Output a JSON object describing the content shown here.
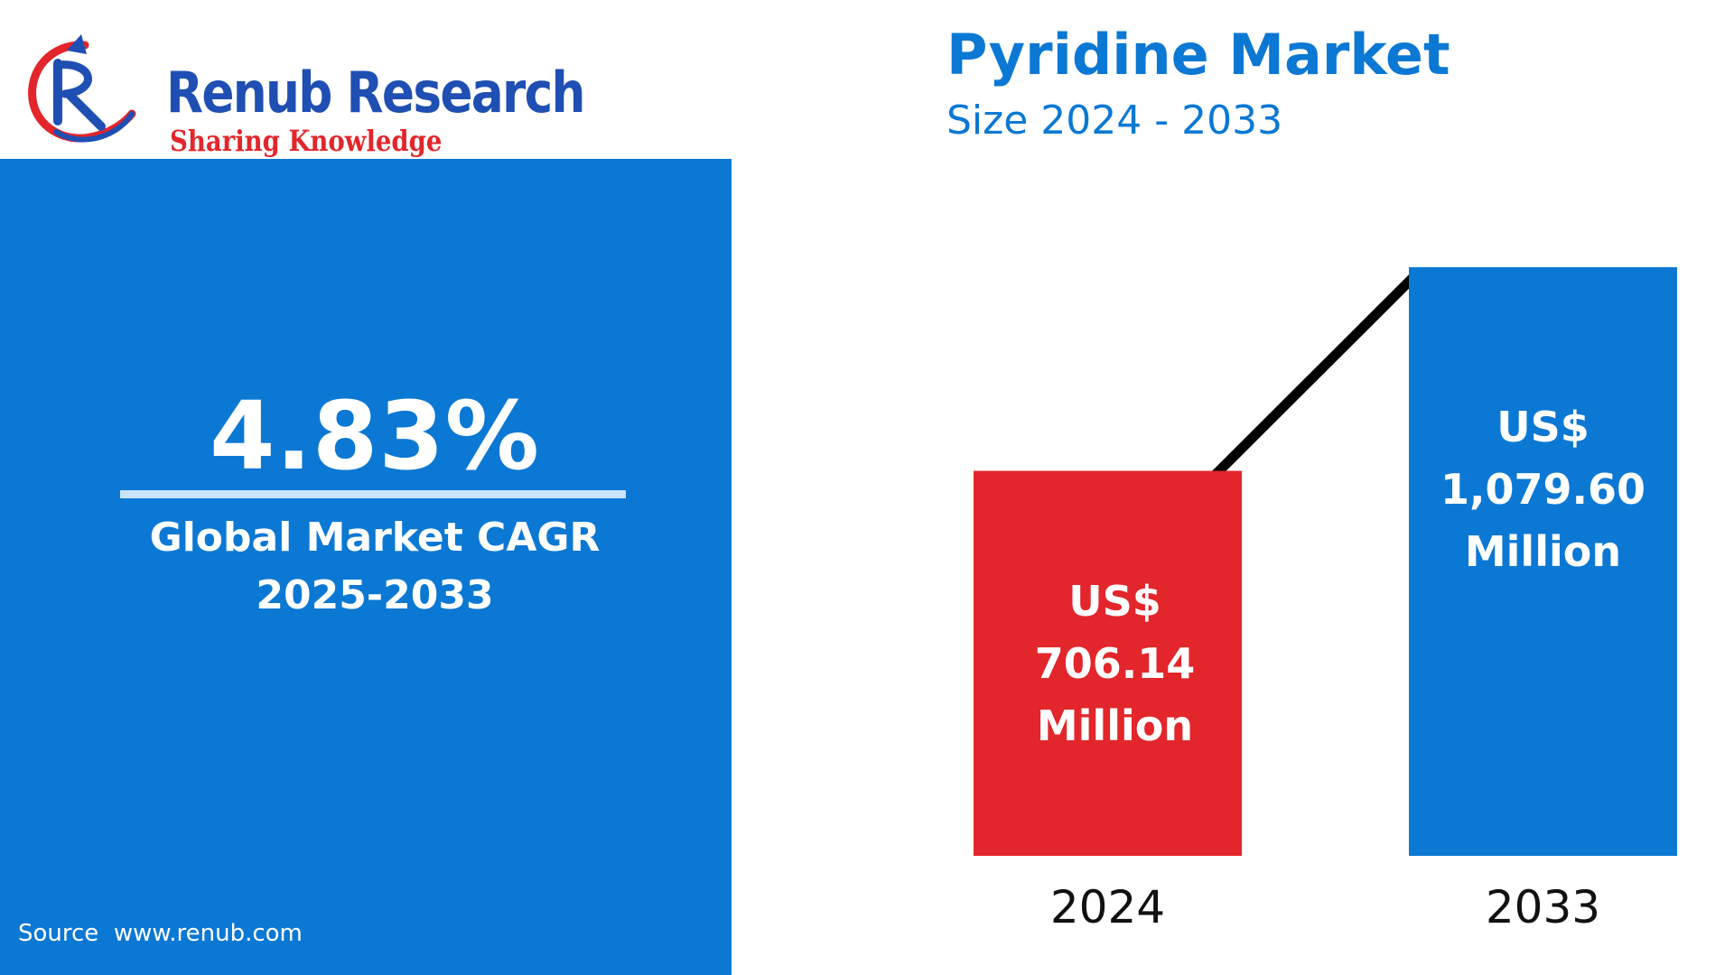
{
  "brand": {
    "name": "Renub Research",
    "tagline": "Sharing Knowledge",
    "logo_icon": "renub-r-arrow-logo",
    "colors": {
      "name": "#1f4fb3",
      "tagline": "#e2262b"
    }
  },
  "cagr": {
    "value": "4.83%",
    "label_line1": "Global Market CAGR",
    "label_line2": "2025-2033"
  },
  "source": "Source  www.renub.com",
  "colors": {
    "accent": "#0b78d4",
    "highlight": "#e2262b",
    "trend_line": "#000000"
  },
  "chart_data": {
    "type": "bar",
    "title": "Pyridine Market",
    "subtitle": "Size 2024 - 2033",
    "categories": [
      "2024",
      "2033"
    ],
    "values": [
      706.14,
      1079.6
    ],
    "data_labels": [
      [
        "US$",
        "706.14",
        "Million"
      ],
      [
        "US$",
        "1,079.60",
        "Million"
      ]
    ],
    "bar_colors": [
      "#e2262b",
      "#0b78d4"
    ],
    "trend_arrow": true,
    "xlabel": "",
    "ylabel": "",
    "grid": false
  }
}
